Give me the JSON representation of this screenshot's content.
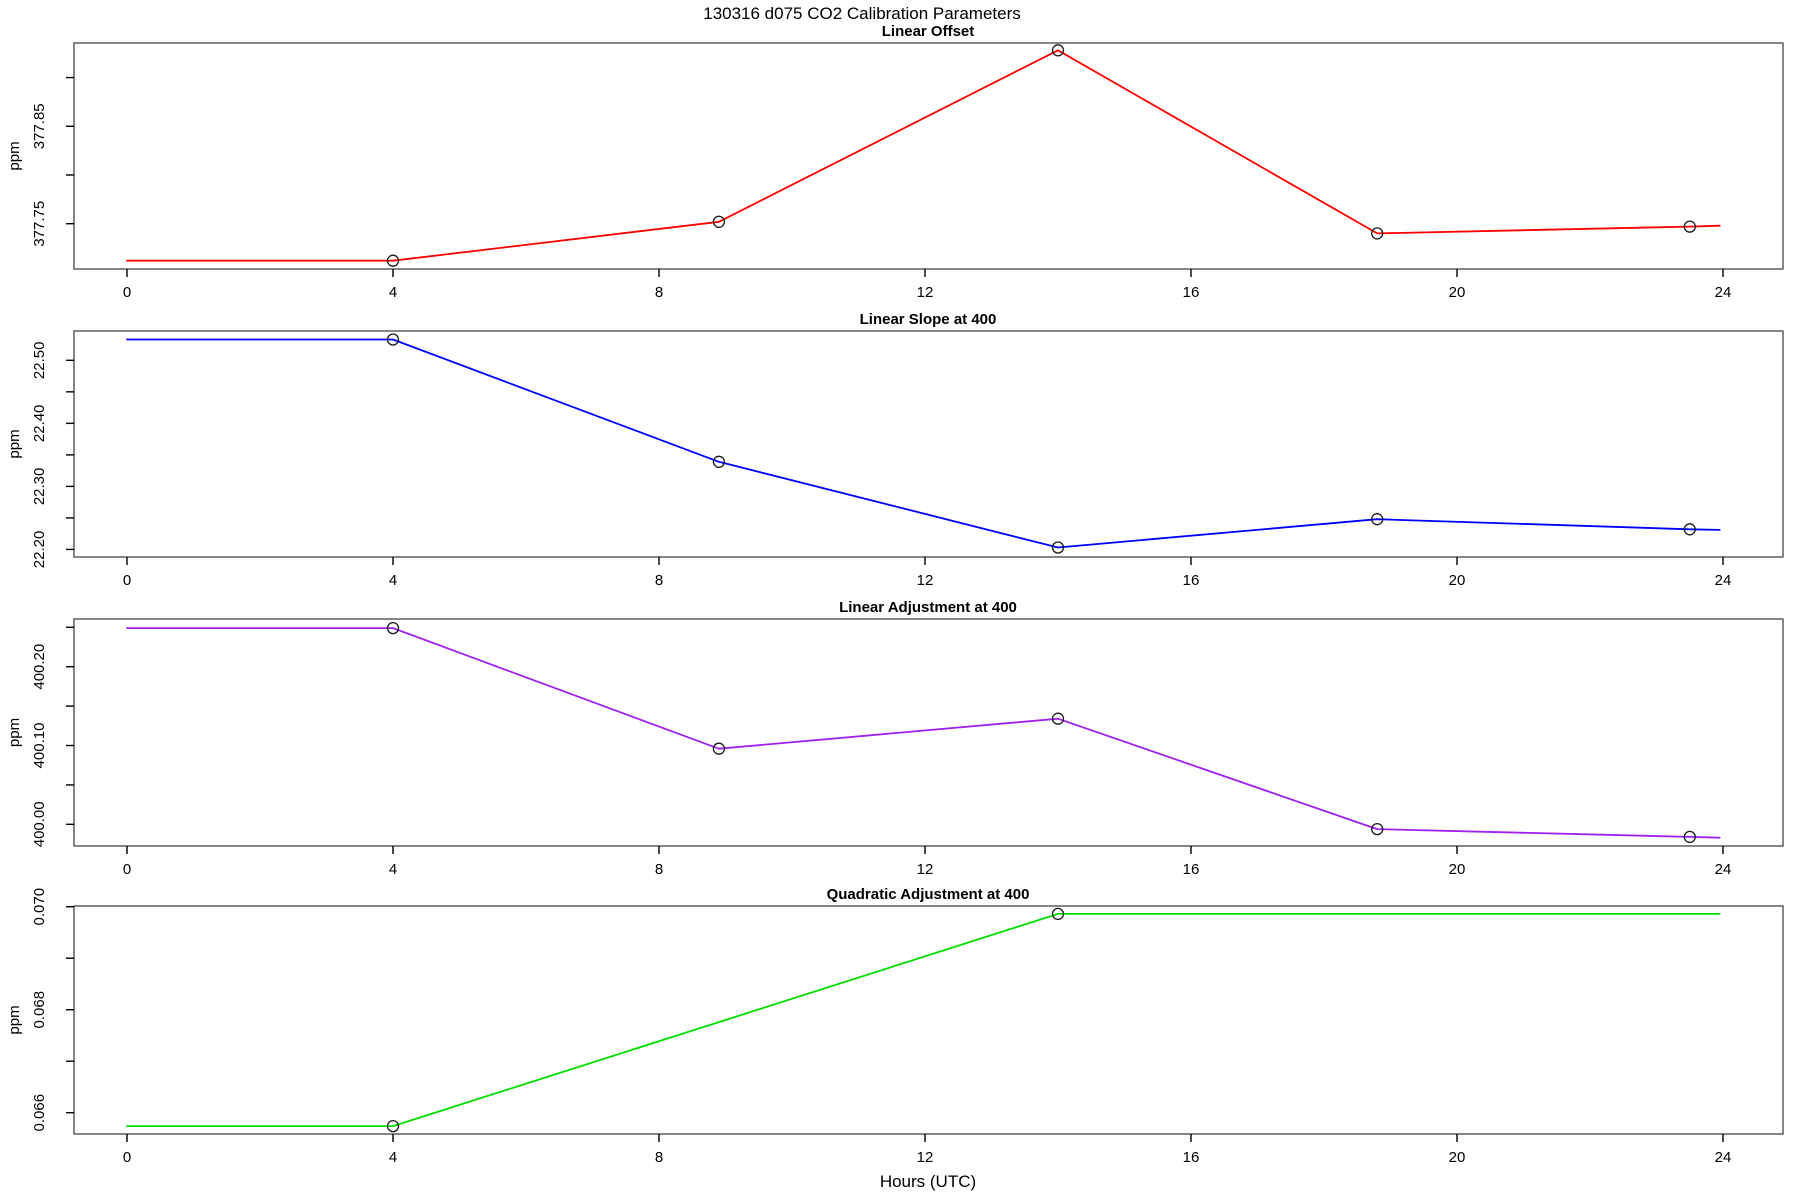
{
  "page": {
    "main_title": "130316   d075   CO2 Calibration Parameters",
    "x_axis_label": "Hours (UTC)"
  },
  "colors": {
    "panel1_line": "#FF0000",
    "panel2_line": "#0000FF",
    "panel3_line": "#A020F0",
    "panel4_line": "#00E000",
    "marker_stroke": "#1a1a1a",
    "box_stroke": "#444444",
    "tick_stroke": "#000000"
  },
  "chart_data": [
    {
      "type": "line",
      "title": "Linear Offset",
      "ylabel": "ppm",
      "color": "#FF0000",
      "xlim": [
        0,
        24
      ],
      "ylim": [
        377.7035,
        377.9355
      ],
      "xticks": [
        0,
        4,
        8,
        12,
        16,
        20,
        24
      ],
      "yticks": [
        {
          "v": 377.75,
          "label": "377.75"
        },
        {
          "v": 377.8,
          "label": ""
        },
        {
          "v": 377.85,
          "label": "377.85"
        },
        {
          "v": 377.9,
          "label": ""
        }
      ],
      "line": [
        [
          0,
          377.712
        ],
        [
          4.0,
          377.712
        ],
        [
          8.9,
          377.752
        ],
        [
          14.0,
          377.928
        ],
        [
          18.8,
          377.74
        ],
        [
          23.5,
          377.747
        ],
        [
          23.95,
          377.748
        ]
      ],
      "markers": [
        [
          4.0,
          377.712
        ],
        [
          8.9,
          377.752
        ],
        [
          14.0,
          377.928
        ],
        [
          18.8,
          377.74
        ],
        [
          23.5,
          377.747
        ]
      ]
    },
    {
      "type": "line",
      "title": "Linear Slope at 400",
      "ylabel": "ppm",
      "color": "#0000FF",
      "xlim": [
        0,
        24
      ],
      "ylim": [
        22.188,
        22.5465
      ],
      "xticks": [
        0,
        4,
        8,
        12,
        16,
        20,
        24
      ],
      "yticks": [
        {
          "v": 22.2,
          "label": "22.20"
        },
        {
          "v": 22.25,
          "label": ""
        },
        {
          "v": 22.3,
          "label": "22.30"
        },
        {
          "v": 22.35,
          "label": ""
        },
        {
          "v": 22.4,
          "label": "22.40"
        },
        {
          "v": 22.45,
          "label": ""
        },
        {
          "v": 22.5,
          "label": "22.50"
        }
      ],
      "line": [
        [
          0,
          22.533
        ],
        [
          4.0,
          22.533
        ],
        [
          8.9,
          22.339
        ],
        [
          14.0,
          22.203
        ],
        [
          18.8,
          22.248
        ],
        [
          23.5,
          22.232
        ],
        [
          23.95,
          22.231
        ]
      ],
      "markers": [
        [
          4.0,
          22.533
        ],
        [
          8.9,
          22.339
        ],
        [
          14.0,
          22.203
        ],
        [
          18.8,
          22.248
        ],
        [
          23.5,
          22.232
        ]
      ]
    },
    {
      "type": "line",
      "title": "Linear Adjustment at 400",
      "ylabel": "ppm",
      "color": "#A020F0",
      "xlim": [
        0,
        24
      ],
      "ylim": [
        399.9725,
        400.2605
      ],
      "xticks": [
        0,
        4,
        8,
        12,
        16,
        20,
        24
      ],
      "yticks": [
        {
          "v": 400.0,
          "label": "400.00"
        },
        {
          "v": 400.05,
          "label": ""
        },
        {
          "v": 400.1,
          "label": "400.10"
        },
        {
          "v": 400.15,
          "label": ""
        },
        {
          "v": 400.2,
          "label": "400.20"
        },
        {
          "v": 400.25,
          "label": ""
        }
      ],
      "line": [
        [
          0,
          400.249
        ],
        [
          4.0,
          400.249
        ],
        [
          8.9,
          400.096
        ],
        [
          14.0,
          400.134
        ],
        [
          18.8,
          399.994
        ],
        [
          23.5,
          399.984
        ],
        [
          23.95,
          399.983
        ]
      ],
      "markers": [
        [
          4.0,
          400.249
        ],
        [
          8.9,
          400.096
        ],
        [
          14.0,
          400.134
        ],
        [
          18.8,
          399.994
        ],
        [
          23.5,
          399.984
        ]
      ]
    },
    {
      "type": "line",
      "title": "Quadratic Adjustment at 400",
      "ylabel": "ppm",
      "color": "#00E000",
      "xlim": [
        0,
        24
      ],
      "ylim": [
        0.065586,
        0.070014
      ],
      "xticks": [
        0,
        4,
        8,
        12,
        16,
        20,
        24
      ],
      "yticks": [
        {
          "v": 0.066,
          "label": "0.066"
        },
        {
          "v": 0.067,
          "label": ""
        },
        {
          "v": 0.068,
          "label": "0.068"
        },
        {
          "v": 0.069,
          "label": ""
        },
        {
          "v": 0.07,
          "label": "0.070"
        }
      ],
      "line": [
        [
          0,
          0.06574
        ],
        [
          4.0,
          0.06574
        ],
        [
          14.0,
          0.06986
        ],
        [
          23.95,
          0.06986
        ]
      ],
      "markers": [
        [
          4.0,
          0.06574
        ],
        [
          14.0,
          0.06986
        ]
      ]
    }
  ]
}
